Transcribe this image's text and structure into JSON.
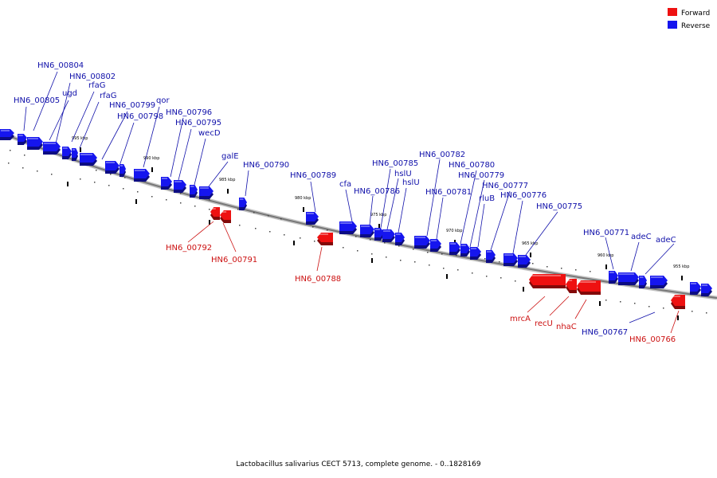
{
  "caption": "Lactobacillus salivarius CECT 5713, complete genome. - 0..1828169",
  "colors": {
    "forward": "#ee1111",
    "reverse": "#1515ee",
    "label_forward": "#cc1111",
    "label_reverse": "#1010aa",
    "backbone": "#777777"
  },
  "legend": [
    {
      "key": "forward",
      "label": "Forward"
    },
    {
      "key": "reverse",
      "label": "Reverse"
    }
  ],
  "ticks": [
    "995 kbp",
    "990 kbp",
    "985 kbp",
    "980 kbp",
    "975 kbp",
    "970 kbp",
    "965 kbp",
    "960 kbp",
    "955 kbp"
  ],
  "genes_reverse": [
    "HN6_00804",
    "HN6_00802",
    "HN6_00805",
    "ugd",
    "rfaG",
    "rfaG",
    "HN6_00799",
    "HN6_00798",
    "qor",
    "HN6_00796",
    "HN6_00795",
    "wecD",
    "galE",
    "HN6_00790",
    "HN6_00789",
    "cfa",
    "HN6_00786",
    "HN6_00785",
    "hslU",
    "hslU",
    "HN6_00782",
    "HN6_00781",
    "HN6_00780",
    "HN6_00779",
    "rluB",
    "HN6_00777",
    "HN6_00776",
    "HN6_00775",
    "HN6_00771",
    "adeC",
    "adeC",
    "HN6_00767"
  ],
  "genes_forward": [
    "HN6_00792",
    "HN6_00791",
    "HN6_00788",
    "mrcA",
    "recU",
    "nhaC",
    "HN6_00766"
  ]
}
